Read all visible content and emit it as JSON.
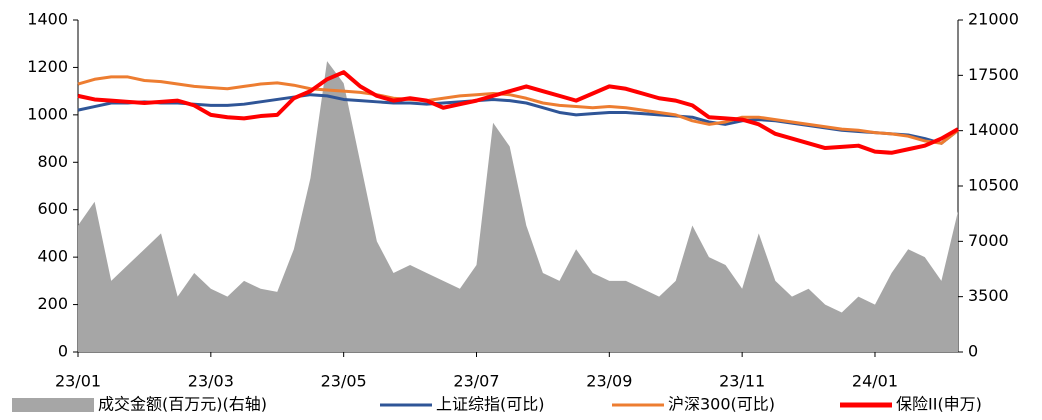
{
  "chart_data": {
    "type": "line",
    "categories": [
      "23/01",
      null,
      null,
      null,
      null,
      null,
      null,
      null,
      "23/03",
      null,
      null,
      null,
      null,
      null,
      null,
      null,
      "23/05",
      null,
      null,
      null,
      null,
      null,
      null,
      null,
      "23/07",
      null,
      null,
      null,
      null,
      null,
      null,
      null,
      "23/09",
      null,
      null,
      null,
      null,
      null,
      null,
      null,
      "23/11",
      null,
      null,
      null,
      null,
      null,
      null,
      null,
      "24/01",
      null,
      null,
      null,
      null,
      null
    ],
    "ylim": [
      0,
      1400
    ],
    "yticks": [
      0,
      200,
      400,
      600,
      800,
      1000,
      1200,
      1400
    ],
    "y2lim": [
      0,
      21000
    ],
    "y2ticks": [
      0,
      3500,
      7000,
      10500,
      14000,
      17500,
      21000
    ],
    "legend": "bottom",
    "series": [
      {
        "name": "成交金额(百万元)(右轴)",
        "color": "#a6a6a6",
        "axis": "y2",
        "type": "area",
        "values": [
          8000,
          9500,
          4500,
          5500,
          6500,
          7500,
          3500,
          5000,
          4000,
          3500,
          4500,
          4000,
          3800,
          6500,
          11000,
          18400,
          17000,
          12000,
          7000,
          5000,
          5500,
          5000,
          4500,
          4000,
          5500,
          14500,
          13000,
          8000,
          5000,
          4500,
          6500,
          5000,
          4500,
          4500,
          4000,
          3500,
          4500,
          8000,
          6000,
          5500,
          4000,
          7500,
          4500,
          3500,
          4000,
          3000,
          2500,
          3500,
          3000,
          5000,
          6500,
          6000,
          4500,
          8900
        ]
      },
      {
        "name": "上证综指(可比)",
        "color": "#2f5597",
        "type": "line",
        "values": [
          1020,
          1035,
          1050,
          1050,
          1055,
          1050,
          1050,
          1045,
          1040,
          1040,
          1045,
          1055,
          1065,
          1075,
          1085,
          1080,
          1065,
          1060,
          1055,
          1050,
          1050,
          1045,
          1050,
          1055,
          1060,
          1065,
          1060,
          1050,
          1030,
          1010,
          1000,
          1005,
          1010,
          1010,
          1005,
          1000,
          995,
          990,
          970,
          960,
          975,
          980,
          975,
          965,
          955,
          945,
          935,
          930,
          925,
          920,
          915,
          900,
          880,
          935
        ]
      },
      {
        "name": "沪深300(可比)",
        "color": "#ed7d31",
        "type": "line",
        "values": [
          1130,
          1150,
          1160,
          1160,
          1145,
          1140,
          1130,
          1120,
          1115,
          1110,
          1120,
          1130,
          1135,
          1125,
          1110,
          1105,
          1100,
          1095,
          1085,
          1070,
          1065,
          1060,
          1070,
          1080,
          1085,
          1090,
          1085,
          1070,
          1050,
          1040,
          1035,
          1030,
          1035,
          1030,
          1020,
          1010,
          1000,
          975,
          960,
          970,
          990,
          990,
          980,
          970,
          960,
          950,
          940,
          935,
          925,
          920,
          910,
          890,
          880,
          935
        ]
      },
      {
        "name": "保险II(申万)",
        "color": "#ff0000",
        "type": "line",
        "values": [
          1080,
          1065,
          1060,
          1055,
          1050,
          1055,
          1060,
          1040,
          1000,
          990,
          985,
          995,
          1000,
          1070,
          1100,
          1150,
          1180,
          1120,
          1080,
          1060,
          1070,
          1060,
          1030,
          1045,
          1060,
          1080,
          1100,
          1120,
          1100,
          1080,
          1060,
          1090,
          1120,
          1110,
          1090,
          1070,
          1060,
          1040,
          990,
          985,
          980,
          960,
          920,
          900,
          880,
          860,
          865,
          870,
          845,
          840,
          855,
          870,
          900,
          940
        ]
      }
    ]
  }
}
